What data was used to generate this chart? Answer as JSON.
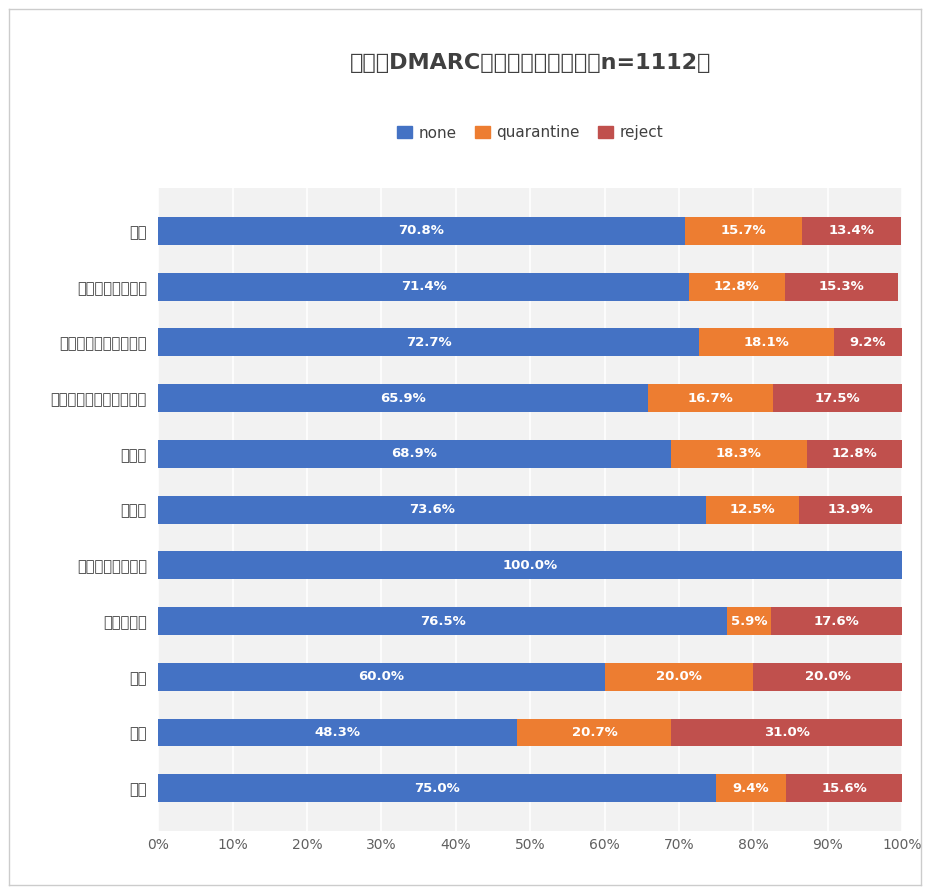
{
  "title": "業界別DMARCポリシー設定割合（n=1112）",
  "categories": [
    "銀行",
    "証券",
    "保険",
    "その他金融",
    "倉庫・運輸関連業",
    "卸売業",
    "小売業",
    "製造業（化学・医薬品）",
    "製造業（機械・機器）",
    "製造業（その他）",
    "全体"
  ],
  "none": [
    75.0,
    48.3,
    60.0,
    76.5,
    100.0,
    73.6,
    68.9,
    65.9,
    72.7,
    71.4,
    70.8
  ],
  "quarantine": [
    9.4,
    20.7,
    20.0,
    5.9,
    0.0,
    12.5,
    18.3,
    16.7,
    18.1,
    12.8,
    15.7
  ],
  "reject": [
    15.6,
    31.0,
    20.0,
    17.6,
    0.0,
    13.9,
    12.8,
    17.5,
    9.2,
    15.3,
    13.4
  ],
  "none_labels": [
    "75.0%",
    "48.3%",
    "60.0%",
    "76.5%",
    "100.0%",
    "73.6%",
    "68.9%",
    "65.9%",
    "72.7%",
    "71.4%",
    "70.8%"
  ],
  "quarantine_labels": [
    "9.4%",
    "20.7%",
    "20.0%",
    "5.9%",
    "",
    "12.5%",
    "18.3%",
    "16.7%",
    "18.1%",
    "12.8%",
    "15.7%"
  ],
  "reject_labels": [
    "15.6%",
    "31.0%",
    "20.0%",
    "17.6%",
    "",
    "13.9%",
    "12.8%",
    "17.5%",
    "9.2%",
    "15.3%",
    "13.4%"
  ],
  "color_none": "#4472C4",
  "color_quarantine": "#ED7D31",
  "color_reject": "#C0504D",
  "legend_labels": [
    "none",
    "quarantine",
    "reject"
  ],
  "background_color": "#FFFFFF",
  "plot_bg_color": "#F2F2F2",
  "bar_height": 0.5,
  "xlim": [
    0,
    100
  ],
  "xticks": [
    0,
    10,
    20,
    30,
    40,
    50,
    60,
    70,
    80,
    90,
    100
  ],
  "xtick_labels": [
    "0%",
    "10%",
    "20%",
    "30%",
    "40%",
    "50%",
    "60%",
    "70%",
    "80%",
    "90%",
    "100%"
  ],
  "title_color": "#404040",
  "tick_color": "#606060",
  "label_color": "#404040",
  "grid_color": "#FFFFFF",
  "font_size_label": 10.5,
  "font_size_bar": 9.5,
  "font_size_tick": 10.0,
  "font_size_title": 16.0,
  "font_size_legend": 11.0
}
